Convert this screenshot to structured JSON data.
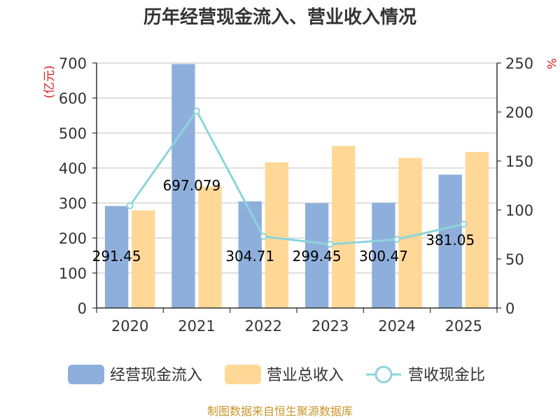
{
  "chart_data": {
    "type": "bar",
    "title": "历年经营现金流入、营业收入情况",
    "categories": [
      "2020",
      "2021",
      "2022",
      "2023",
      "2024",
      "2025"
    ],
    "series": [
      {
        "name": "经营现金流入",
        "type": "bar",
        "axis": "left",
        "color": "#8eafdc",
        "values": [
          291.45,
          697.079,
          304.71,
          299.45,
          300.47,
          381.05
        ],
        "labels": [
          "291.45",
          "697.079",
          "304.71",
          "299.45",
          "300.47",
          "381.05"
        ]
      },
      {
        "name": "营业总收入",
        "type": "bar",
        "axis": "left",
        "color": "#ffd898",
        "values": [
          279,
          347,
          416,
          463,
          429,
          446
        ]
      },
      {
        "name": "营收现金比",
        "type": "line",
        "axis": "right",
        "color": "#8bd5d9",
        "values": [
          104.5,
          201,
          73,
          65,
          70,
          85.5
        ]
      }
    ],
    "y_left": {
      "unit": "(亿元)",
      "min": 0,
      "max": 700,
      "ticks": [
        0,
        100,
        200,
        300,
        400,
        500,
        600,
        700
      ]
    },
    "y_right": {
      "unit": "%",
      "min": 0,
      "max": 250,
      "ticks": [
        0,
        50,
        100,
        150,
        200,
        250
      ]
    },
    "legend_position": "bottom",
    "grid": true
  },
  "source": "制图数据来自恒生聚源数据库"
}
